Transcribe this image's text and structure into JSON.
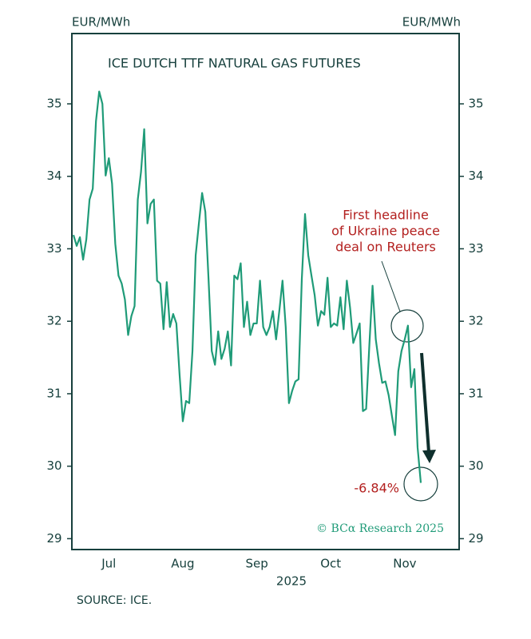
{
  "chart_data": {
    "type": "line",
    "title": "ICE DUTCH TTF NATURAL GAS FUTURES",
    "y_label": "EUR/MWh",
    "y2_label": "EUR/MWh",
    "x_label": "2025",
    "source": "SOURCE: ICE.",
    "credit": "© BCα Research 2025",
    "annotations": [
      "First headline",
      "of Ukraine peace",
      "deal on Reuters",
      "-6.84%"
    ],
    "categories": [
      null,
      null,
      null,
      null,
      null,
      null,
      null,
      null,
      null,
      null,
      null,
      "Jul",
      null,
      null,
      null,
      null,
      null,
      null,
      null,
      null,
      null,
      null,
      null,
      null,
      null,
      null,
      null,
      null,
      null,
      null,
      null,
      null,
      null,
      null,
      "Aug",
      null,
      null,
      null,
      null,
      null,
      null,
      null,
      null,
      null,
      null,
      null,
      null,
      null,
      null,
      null,
      null,
      null,
      null,
      null,
      null,
      null,
      null,
      "Sep",
      null,
      null,
      null,
      null,
      null,
      null,
      null,
      null,
      null,
      null,
      null,
      null,
      null,
      null,
      null,
      null,
      null,
      null,
      null,
      null,
      null,
      null,
      "Oct",
      null,
      null,
      null,
      null,
      null,
      null,
      null,
      null,
      null,
      null,
      null,
      null,
      null,
      null,
      null,
      null,
      null,
      null,
      null,
      null,
      null,
      null,
      "Nov",
      null,
      null,
      null,
      null,
      null
    ],
    "series": [
      {
        "name": "ICE Dutch TTF",
        "color": "#1f9b78",
        "values": [
          33.19,
          33.04,
          33.16,
          32.85,
          33.13,
          33.68,
          33.83,
          34.76,
          35.17,
          35.0,
          34.01,
          34.25,
          33.9,
          33.07,
          32.63,
          32.52,
          32.3,
          31.81,
          32.07,
          32.21,
          33.68,
          34.06,
          34.65,
          33.35,
          33.62,
          33.68,
          32.56,
          32.52,
          31.89,
          32.54,
          31.92,
          32.1,
          31.97,
          31.26,
          30.62,
          30.9,
          30.87,
          31.59,
          32.91,
          33.35,
          33.77,
          33.51,
          32.58,
          31.59,
          31.4,
          31.86,
          31.48,
          31.62,
          31.86,
          31.39,
          32.63,
          32.58,
          32.8,
          31.92,
          32.27,
          31.81,
          31.97,
          31.97,
          32.56,
          31.92,
          31.81,
          31.92,
          32.14,
          31.75,
          32.14,
          32.56,
          31.92,
          30.87,
          31.04,
          31.17,
          31.2,
          32.58,
          33.48,
          32.91,
          32.63,
          32.36,
          31.94,
          32.14,
          32.09,
          32.6,
          31.92,
          31.97,
          31.94,
          32.33,
          31.89,
          32.56,
          32.19,
          31.7,
          31.83,
          31.97,
          30.76,
          30.79,
          31.67,
          32.49,
          31.75,
          31.42,
          31.15,
          31.17,
          30.98,
          30.7,
          30.43,
          31.31,
          31.59,
          31.75,
          31.94,
          31.09,
          31.34,
          30.26,
          29.77
        ]
      }
    ],
    "ylim": [
      28.85,
      35.97
    ],
    "yticks": [
      29,
      30,
      31,
      32,
      33,
      34,
      35
    ],
    "y2lim": [
      28.85,
      35.97
    ],
    "y2ticks": [
      29,
      30,
      31,
      32,
      33,
      34,
      35
    ],
    "grid": false
  }
}
